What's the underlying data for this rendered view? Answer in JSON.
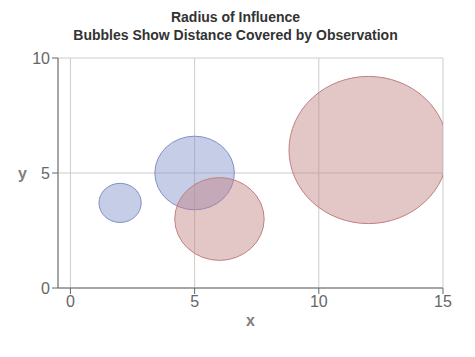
{
  "chart_data": {
    "type": "bubble",
    "title": "Radius of Influence",
    "subtitle": "Bubbles Show Distance Covered by Observation",
    "xlabel": "x",
    "ylabel": "y",
    "xlim": [
      -0.5,
      15
    ],
    "ylim": [
      0,
      10
    ],
    "xticks": [
      0,
      5,
      10,
      15
    ],
    "yticks": [
      0,
      5,
      10
    ],
    "grid": true,
    "x": [
      2,
      5,
      6,
      12
    ],
    "values": [
      3.7,
      5.0,
      3.0,
      6.0
    ],
    "r": [
      0.85,
      1.6,
      1.8,
      3.2
    ],
    "colors": [
      "#8090c8",
      "#8090c8",
      "#c08080",
      "#c08080"
    ]
  }
}
